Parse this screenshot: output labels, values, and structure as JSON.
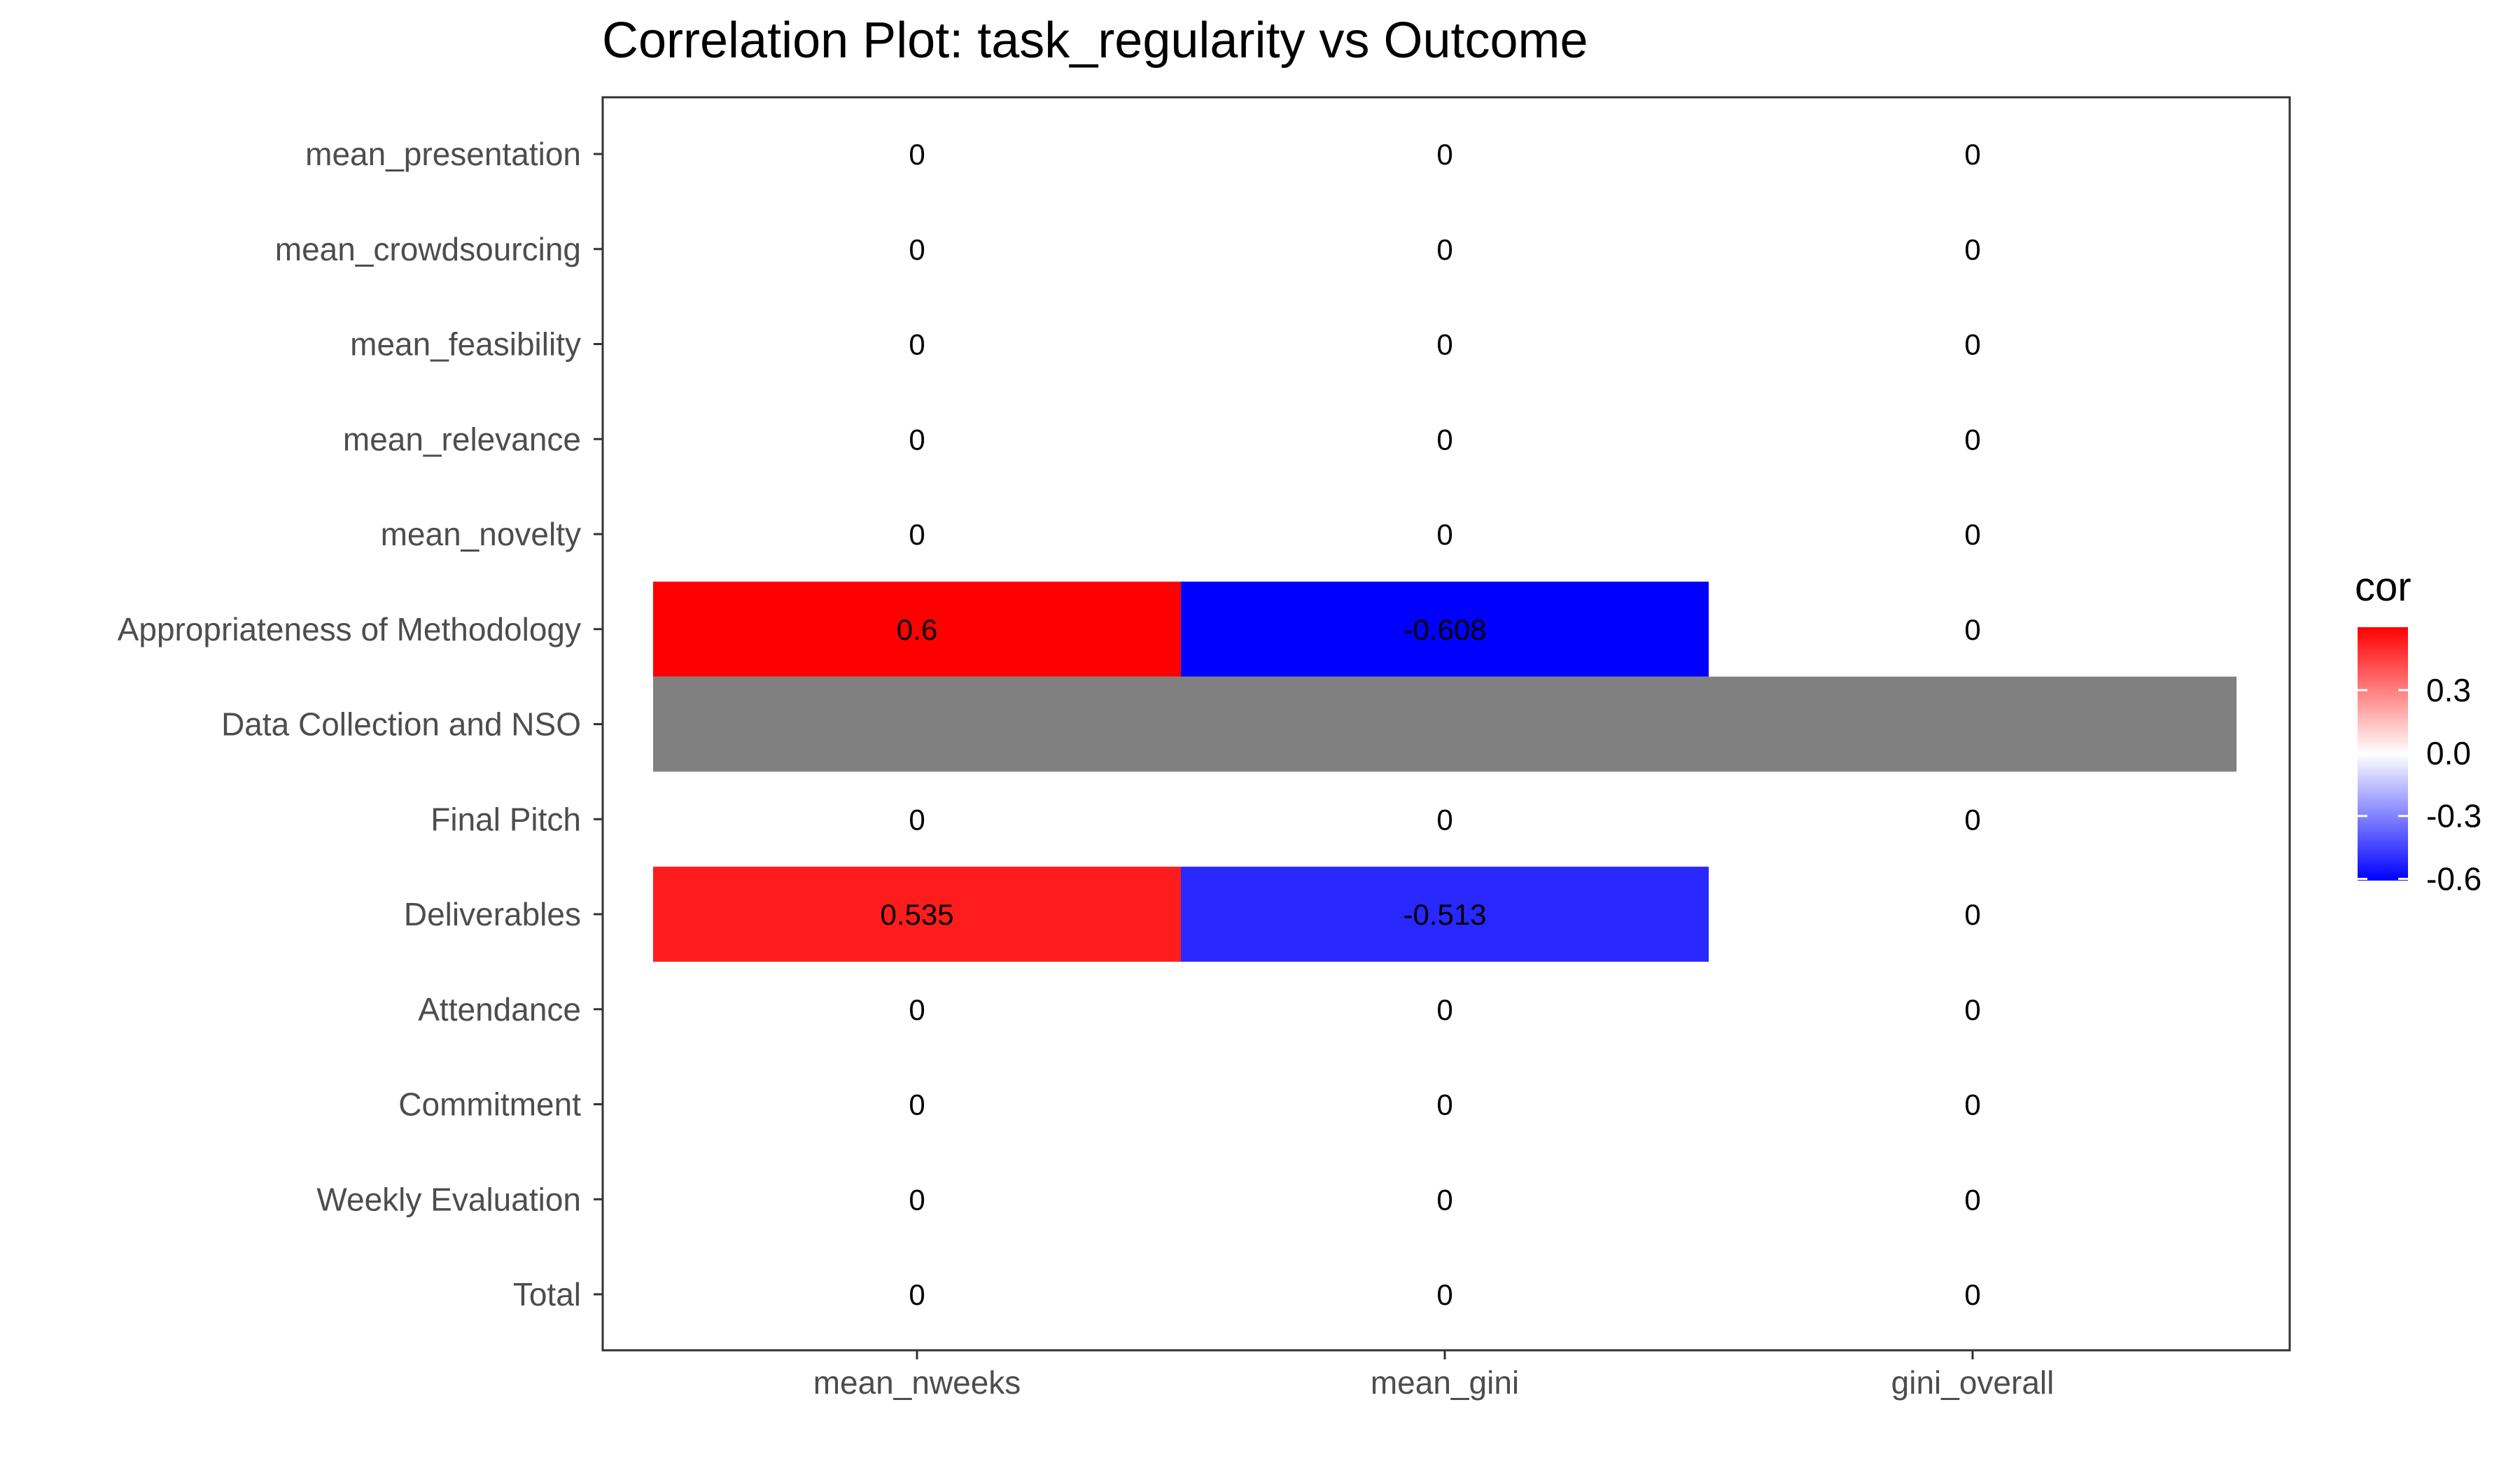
{
  "chart_data": {
    "type": "heatmap",
    "title": "Correlation Plot: task_regularity vs Outcome",
    "xlabel": "",
    "ylabel": "",
    "x_categories": [
      "mean_nweeks",
      "mean_gini",
      "gini_overall"
    ],
    "y_categories": [
      "mean_presentation",
      "mean_crowdsourcing",
      "mean_feasibility",
      "mean_relevance",
      "mean_novelty",
      "Appropriateness of Methodology",
      "Data Collection and NSO",
      "Final Pitch",
      "Deliverables",
      "Attendance",
      "Commitment",
      "Weekly Evaluation",
      "Total"
    ],
    "values": [
      [
        0,
        0,
        0
      ],
      [
        0,
        0,
        0
      ],
      [
        0,
        0,
        0
      ],
      [
        0,
        0,
        0
      ],
      [
        0,
        0,
        0
      ],
      [
        0.6,
        -0.608,
        0
      ],
      [
        null,
        null,
        null
      ],
      [
        0,
        0,
        0
      ],
      [
        0.535,
        -0.513,
        0
      ],
      [
        0,
        0,
        0
      ],
      [
        0,
        0,
        0
      ],
      [
        0,
        0,
        0
      ],
      [
        0,
        0,
        0
      ]
    ],
    "cell_labels": [
      [
        "0",
        "0",
        "0"
      ],
      [
        "0",
        "0",
        "0"
      ],
      [
        "0",
        "0",
        "0"
      ],
      [
        "0",
        "0",
        "0"
      ],
      [
        "0",
        "0",
        "0"
      ],
      [
        "0.6",
        "-0.608",
        "0"
      ],
      [
        "",
        "",
        ""
      ],
      [
        "0",
        "0",
        "0"
      ],
      [
        "0.535",
        "-0.513",
        "0"
      ],
      [
        "0",
        "0",
        "0"
      ],
      [
        "0",
        "0",
        "0"
      ],
      [
        "0",
        "0",
        "0"
      ],
      [
        "0",
        "0",
        "0"
      ]
    ],
    "color_scale": {
      "low": "#0000ff",
      "mid": "#ffffff",
      "high": "#ff0000",
      "na": "#808080",
      "domain": [
        -0.608,
        0.6
      ]
    },
    "legend": {
      "title": "cor",
      "ticks": [
        0.3,
        0.0,
        -0.3,
        -0.6
      ],
      "tick_labels": [
        "0.3",
        "0.0",
        "-0.3",
        "-0.6"
      ],
      "position": "right"
    },
    "grid": false
  }
}
